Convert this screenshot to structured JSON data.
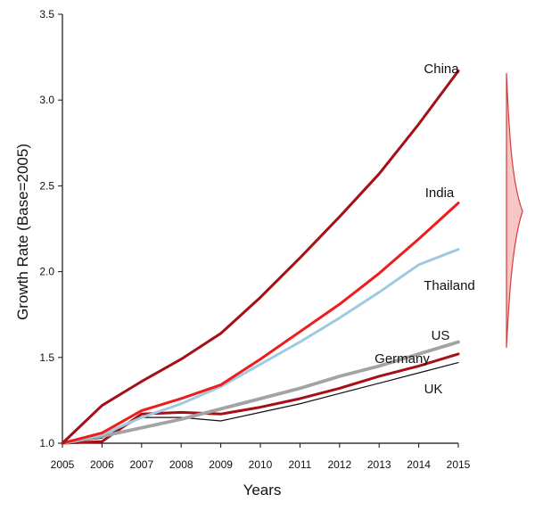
{
  "chart_data": {
    "type": "line",
    "title": "",
    "xlabel": "Years",
    "ylabel": "Growth Rate (Base=2005)",
    "x": [
      2005,
      2006,
      2007,
      2008,
      2009,
      2010,
      2011,
      2012,
      2013,
      2014,
      2015
    ],
    "x_tick_labels": [
      "2005",
      "2006",
      "2007",
      "2008",
      "2009",
      "2010",
      "2011",
      "2012",
      "2013",
      "2014",
      "2015"
    ],
    "y_ticks": [
      1.0,
      1.5,
      2.0,
      2.5,
      3.0,
      3.5
    ],
    "y_tick_labels": [
      "1.0",
      "1.5",
      "2.0",
      "2.5",
      "3.0",
      "3.5"
    ],
    "xlim": [
      2005,
      2015
    ],
    "ylim": [
      1.0,
      3.5
    ],
    "grid": false,
    "legend": "inline labels",
    "series": [
      {
        "name": "China",
        "color": "#a50f15",
        "values": [
          1.0,
          1.22,
          1.36,
          1.49,
          1.64,
          1.85,
          2.08,
          2.32,
          2.57,
          2.86,
          3.17
        ]
      },
      {
        "name": "India",
        "color": "#ee1c1c",
        "values": [
          1.0,
          1.06,
          1.19,
          1.26,
          1.34,
          1.49,
          1.65,
          1.81,
          1.99,
          2.19,
          2.4
        ]
      },
      {
        "name": "Thailand",
        "color": "#9ecae1",
        "values": [
          1.0,
          1.05,
          1.15,
          1.23,
          1.33,
          1.46,
          1.59,
          1.73,
          1.88,
          2.04,
          2.13
        ]
      },
      {
        "name": "US",
        "color": "#a3a3a3",
        "values": [
          1.0,
          1.04,
          1.09,
          1.14,
          1.2,
          1.26,
          1.32,
          1.39,
          1.45,
          1.52,
          1.59
        ]
      },
      {
        "name": "Germany",
        "color": "#a50f15",
        "values": [
          1.0,
          1.01,
          1.17,
          1.18,
          1.17,
          1.21,
          1.26,
          1.32,
          1.39,
          1.45,
          1.52
        ]
      },
      {
        "name": "UK",
        "color": "#111111",
        "values": [
          1.0,
          1.03,
          1.15,
          1.15,
          1.13,
          1.18,
          1.23,
          1.29,
          1.35,
          1.41,
          1.47
        ]
      }
    ],
    "arrow": {
      "fill": "#f7c7c7",
      "stroke": "#d63b3b"
    }
  }
}
